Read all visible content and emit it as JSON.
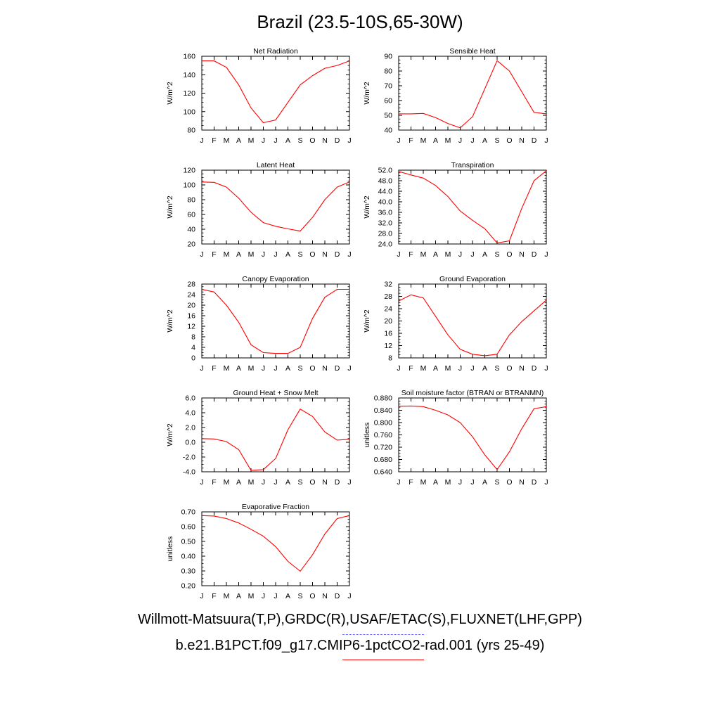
{
  "title": "Brazil (23.5-10S,65-30W)",
  "legend": [
    {
      "label": "Willmott-Matsuura(T,P),GRDC(R),USAF/ETAC(S),FLUXNET(LHF,GPP)",
      "color": "#6464ff",
      "style": "dashed"
    },
    {
      "label": "b.e21.B1PCT.f09_g17.CMIP6-1pctCO2-rad.001 (yrs 25-49)",
      "color": "#ff0000",
      "style": "solid"
    }
  ],
  "chart_data": [
    {
      "type": "line",
      "title": "Net Radiation",
      "ylabel": "W/m^2",
      "categories": [
        "J",
        "F",
        "M",
        "A",
        "M",
        "J",
        "J",
        "A",
        "S",
        "O",
        "N",
        "D",
        "J"
      ],
      "yticks": [
        "80",
        "100",
        "120",
        "140",
        "160"
      ],
      "ylim": [
        80,
        160
      ],
      "series": [
        {
          "values": [
            155,
            155,
            148,
            129,
            104,
            88,
            91,
            110,
            129,
            139,
            147,
            150,
            155
          ],
          "color": "#ff0000"
        }
      ]
    },
    {
      "type": "line",
      "title": "Sensible Heat",
      "ylabel": "W/m^2",
      "categories": [
        "J",
        "F",
        "M",
        "A",
        "M",
        "J",
        "J",
        "A",
        "S",
        "O",
        "N",
        "D",
        "J"
      ],
      "yticks": [
        "40",
        "50",
        "60",
        "70",
        "80",
        "90"
      ],
      "ylim": [
        40,
        90
      ],
      "series": [
        {
          "values": [
            51,
            51,
            51.3,
            48.5,
            44.5,
            41.5,
            49,
            68,
            87,
            80,
            66,
            52,
            51
          ],
          "color": "#ff0000"
        }
      ]
    },
    {
      "type": "line",
      "title": "Latent Heat",
      "ylabel": "W/m^2",
      "categories": [
        "J",
        "F",
        "M",
        "A",
        "M",
        "J",
        "J",
        "A",
        "S",
        "O",
        "N",
        "D",
        "J"
      ],
      "yticks": [
        "20",
        "40",
        "60",
        "80",
        "100",
        "120"
      ],
      "ylim": [
        20,
        120
      ],
      "series": [
        {
          "values": [
            104,
            103.5,
            97,
            82,
            63,
            49,
            44,
            40.5,
            37.5,
            56,
            80,
            97,
            104
          ],
          "color": "#ff0000"
        }
      ]
    },
    {
      "type": "line",
      "title": "Transpiration",
      "ylabel": "W/m^2",
      "categories": [
        "J",
        "F",
        "M",
        "A",
        "M",
        "J",
        "J",
        "A",
        "S",
        "O",
        "N",
        "D",
        "J"
      ],
      "yticks": [
        "24.0",
        "28.0",
        "32.0",
        "36.0",
        "40.0",
        "44.0",
        "48.0",
        "52.0"
      ],
      "ylim": [
        24,
        52
      ],
      "series": [
        {
          "values": [
            51.5,
            50.2,
            49,
            46.2,
            42,
            36.5,
            33,
            29.8,
            24.4,
            25.2,
            37.5,
            48,
            51.8
          ],
          "color": "#ff0000"
        }
      ]
    },
    {
      "type": "line",
      "title": "Canopy Evaporation",
      "ylabel": "W/m^2",
      "categories": [
        "J",
        "F",
        "M",
        "A",
        "M",
        "J",
        "J",
        "A",
        "S",
        "O",
        "N",
        "D",
        "J"
      ],
      "yticks": [
        "0",
        "4",
        "8",
        "12",
        "16",
        "20",
        "24",
        "28"
      ],
      "ylim": [
        0,
        28
      ],
      "series": [
        {
          "values": [
            26,
            25,
            20,
            13.5,
            5,
            2,
            1.7,
            1.7,
            4,
            15,
            23,
            26,
            26
          ],
          "color": "#ff0000"
        }
      ]
    },
    {
      "type": "line",
      "title": "Ground Evaporation",
      "ylabel": "W/m^2",
      "categories": [
        "J",
        "F",
        "M",
        "A",
        "M",
        "J",
        "J",
        "A",
        "S",
        "O",
        "N",
        "D",
        "J"
      ],
      "yticks": [
        "8",
        "12",
        "16",
        "20",
        "24",
        "28",
        "32"
      ],
      "ylim": [
        8,
        32
      ],
      "series": [
        {
          "values": [
            26.5,
            28.5,
            27.5,
            21.5,
            15.5,
            10.8,
            9.2,
            8.7,
            9.2,
            15.5,
            19.8,
            23.3,
            26.8
          ],
          "color": "#ff0000"
        }
      ]
    },
    {
      "type": "line",
      "title": "Ground Heat + Snow Melt",
      "ylabel": "W/m^2",
      "categories": [
        "J",
        "F",
        "M",
        "A",
        "M",
        "J",
        "J",
        "A",
        "S",
        "O",
        "N",
        "D",
        "J"
      ],
      "yticks": [
        "-4.0",
        "-2.0",
        "0.0",
        "2.0",
        "4.0",
        "6.0"
      ],
      "ylim": [
        -4,
        6
      ],
      "series": [
        {
          "values": [
            0.5,
            0.45,
            0.1,
            -1.0,
            -3.8,
            -3.7,
            -2.2,
            1.7,
            4.5,
            3.5,
            1.4,
            0.3,
            0.4
          ],
          "color": "#ff0000"
        }
      ]
    },
    {
      "type": "line",
      "title": "Soil moisture factor (BTRAN or BTRANMN)",
      "ylabel": "unitless",
      "categories": [
        "J",
        "F",
        "M",
        "A",
        "M",
        "J",
        "J",
        "A",
        "S",
        "O",
        "N",
        "D",
        "J"
      ],
      "yticks": [
        "0.640",
        "0.680",
        "0.720",
        "0.760",
        "0.800",
        "0.840",
        "0.880"
      ],
      "ylim": [
        0.64,
        0.88
      ],
      "series": [
        {
          "values": [
            0.853,
            0.854,
            0.852,
            0.84,
            0.825,
            0.8,
            0.754,
            0.695,
            0.647,
            0.705,
            0.78,
            0.845,
            0.852
          ],
          "color": "#ff0000"
        }
      ]
    },
    {
      "type": "line",
      "title": "Evaporative Fraction",
      "ylabel": "unitless",
      "categories": [
        "J",
        "F",
        "M",
        "A",
        "M",
        "J",
        "J",
        "A",
        "S",
        "O",
        "N",
        "D",
        "J"
      ],
      "yticks": [
        "0.20",
        "0.30",
        "0.40",
        "0.50",
        "0.60",
        "0.70"
      ],
      "ylim": [
        0.2,
        0.7
      ],
      "series": [
        {
          "values": [
            0.675,
            0.672,
            0.655,
            0.625,
            0.582,
            0.535,
            0.465,
            0.365,
            0.298,
            0.41,
            0.55,
            0.655,
            0.675
          ],
          "color": "#ff0000"
        }
      ]
    }
  ]
}
